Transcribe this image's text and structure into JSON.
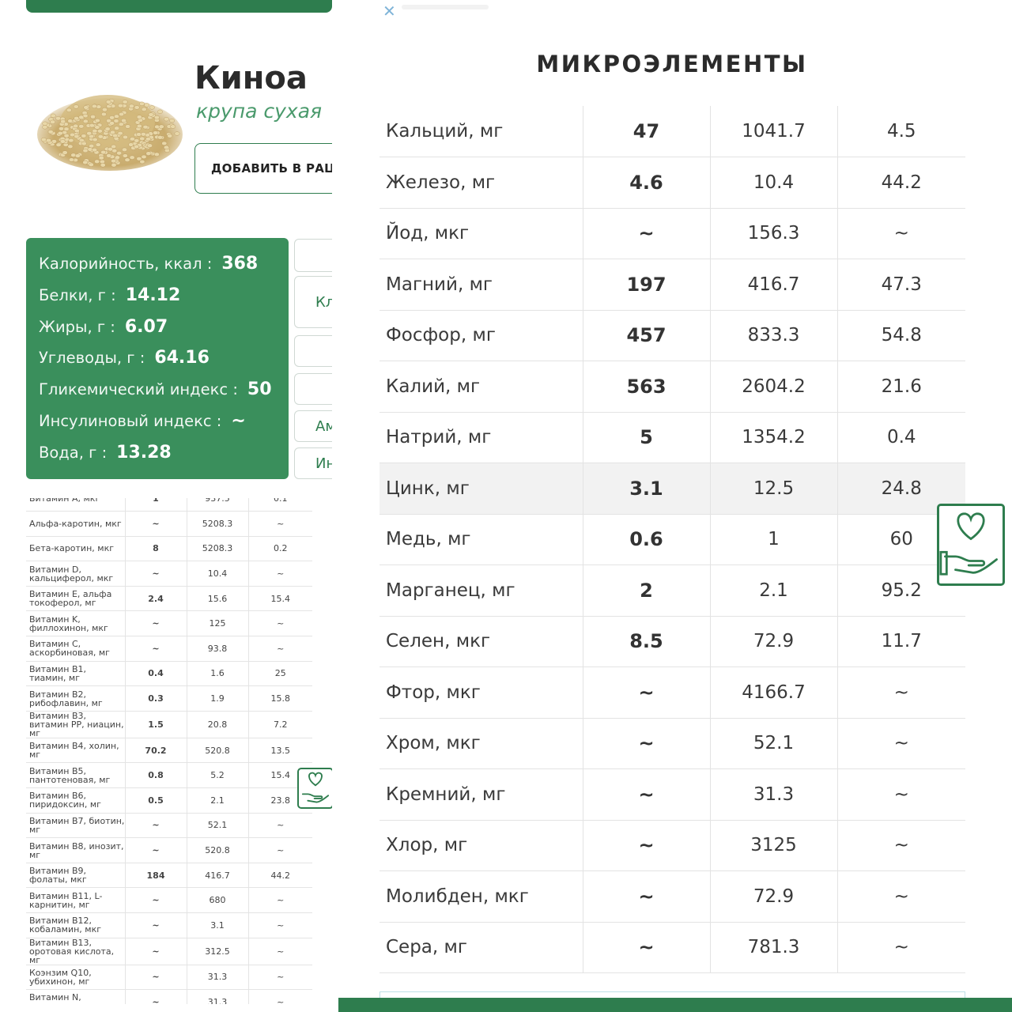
{
  "product": {
    "title": "Киноа",
    "subtitle": "крупа сухая",
    "add_button": "ДОБАВИТЬ В РАЦИ"
  },
  "nutrition": [
    {
      "label": "Калорийность, ккал :",
      "value": "368"
    },
    {
      "label": "Белки, г :",
      "value": "14.12"
    },
    {
      "label": "Жиры, г :",
      "value": "6.07"
    },
    {
      "label": "Углеводы, г :",
      "value": "64.16"
    },
    {
      "label": "Гликемический индекс :",
      "value": "50"
    },
    {
      "label": "Инсулиновый индекс :",
      "value": "~"
    },
    {
      "label": "Вода, г :",
      "value": "13.28"
    }
  ],
  "side_buttons": [
    "",
    "Кл",
    "",
    "",
    "Ам",
    "Ин"
  ],
  "vitamins": [
    {
      "name": "Витамин А, мкг",
      "value": "1",
      "daily": "937.5",
      "pct": "0.1"
    },
    {
      "name": "Альфа-каротин, мкг",
      "value": "~",
      "daily": "5208.3",
      "pct": "~"
    },
    {
      "name": "Бета-каротин, мкг",
      "value": "8",
      "daily": "5208.3",
      "pct": "0.2"
    },
    {
      "name": "Витамин D, кальциферол, мкг",
      "value": "~",
      "daily": "10.4",
      "pct": "~"
    },
    {
      "name": "Витамин Е, альфа токоферол, мг",
      "value": "2.4",
      "daily": "15.6",
      "pct": "15.4"
    },
    {
      "name": "Витамин K, филлохинон, мкг",
      "value": "~",
      "daily": "125",
      "pct": "~"
    },
    {
      "name": "Витамин C, аскорбиновая, мг",
      "value": "~",
      "daily": "93.8",
      "pct": "~"
    },
    {
      "name": "Витамин B1, тиамин, мг",
      "value": "0.4",
      "daily": "1.6",
      "pct": "25"
    },
    {
      "name": "Витамин B2, рибофлавин, мг",
      "value": "0.3",
      "daily": "1.9",
      "pct": "15.8"
    },
    {
      "name": "Витамин B3, витамин PP, ниацин, мг",
      "value": "1.5",
      "daily": "20.8",
      "pct": "7.2"
    },
    {
      "name": "Витамин B4, холин, мг",
      "value": "70.2",
      "daily": "520.8",
      "pct": "13.5"
    },
    {
      "name": "Витамин B5, пантотеновая, мг",
      "value": "0.8",
      "daily": "5.2",
      "pct": "15.4"
    },
    {
      "name": "Витамин B6, пиридоксин, мг",
      "value": "0.5",
      "daily": "2.1",
      "pct": "23.8"
    },
    {
      "name": "Витамин B7, биотин, мг",
      "value": "~",
      "daily": "52.1",
      "pct": "~"
    },
    {
      "name": "Витамин B8, инозит, мг",
      "value": "~",
      "daily": "520.8",
      "pct": "~"
    },
    {
      "name": "Витамин B9, фолаты, мкг",
      "value": "184",
      "daily": "416.7",
      "pct": "44.2"
    },
    {
      "name": "Витамин B11, L-карнитин, мг",
      "value": "~",
      "daily": "680",
      "pct": "~"
    },
    {
      "name": "Витамин B12, кобаламин, мкг",
      "value": "~",
      "daily": "3.1",
      "pct": "~"
    },
    {
      "name": "Витамин B13, оротовая кислота, мг",
      "value": "~",
      "daily": "312.5",
      "pct": "~"
    },
    {
      "name": "Коэнзим Q10, убихинон, мг",
      "value": "~",
      "daily": "31.3",
      "pct": "~"
    },
    {
      "name": "Витамин N, липоевая кислота",
      "value": "~",
      "daily": "31.3",
      "pct": "~"
    }
  ],
  "micro": {
    "title": "МИКРОЭЛЕМЕНТЫ",
    "rows": [
      {
        "name": "Кальций, мг",
        "value": "47",
        "daily": "1041.7",
        "pct": "4.5"
      },
      {
        "name": "Железо, мг",
        "value": "4.6",
        "daily": "10.4",
        "pct": "44.2"
      },
      {
        "name": "Йод, мкг",
        "value": "~",
        "daily": "156.3",
        "pct": "~"
      },
      {
        "name": "Магний, мг",
        "value": "197",
        "daily": "416.7",
        "pct": "47.3"
      },
      {
        "name": "Фосфор, мг",
        "value": "457",
        "daily": "833.3",
        "pct": "54.8"
      },
      {
        "name": "Калий, мг",
        "value": "563",
        "daily": "2604.2",
        "pct": "21.6"
      },
      {
        "name": "Натрий, мг",
        "value": "5",
        "daily": "1354.2",
        "pct": "0.4"
      },
      {
        "name": "Цинк, мг",
        "value": "3.1",
        "daily": "12.5",
        "pct": "24.8"
      },
      {
        "name": "Медь, мг",
        "value": "0.6",
        "daily": "1",
        "pct": "60"
      },
      {
        "name": "Марганец, мг",
        "value": "2",
        "daily": "2.1",
        "pct": "95.2"
      },
      {
        "name": "Селен, мкг",
        "value": "8.5",
        "daily": "72.9",
        "pct": "11.7"
      },
      {
        "name": "Фтор, мкг",
        "value": "~",
        "daily": "4166.7",
        "pct": "~"
      },
      {
        "name": "Хром, мкг",
        "value": "~",
        "daily": "52.1",
        "pct": "~"
      },
      {
        "name": "Кремний, мг",
        "value": "~",
        "daily": "31.3",
        "pct": "~"
      },
      {
        "name": "Хлор, мг",
        "value": "~",
        "daily": "3125",
        "pct": "~"
      },
      {
        "name": "Молибден, мкг",
        "value": "~",
        "daily": "72.9",
        "pct": "~"
      },
      {
        "name": "Сера, мг",
        "value": "~",
        "daily": "781.3",
        "pct": "~"
      }
    ],
    "highlighted_row": "Цинк, мг"
  },
  "icons": {
    "health": "heart-hand-icon",
    "close": "close-icon",
    "product_image": "quinoa-grain-image"
  },
  "colors": {
    "brand_green": "#2e7d4e",
    "card_green": "#3a8f5c",
    "subtitle_green": "#4a9a6c"
  }
}
